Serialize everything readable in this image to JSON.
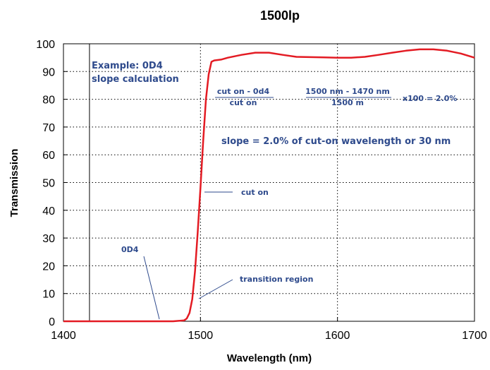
{
  "chart_data": {
    "type": "line",
    "title": "1500lp",
    "xlabel": "Wavelength (nm)",
    "ylabel": "Transmission",
    "xlim": [
      1400,
      1700
    ],
    "ylim": [
      0,
      100
    ],
    "x_ticks": [
      1400,
      1500,
      1600,
      1700
    ],
    "y_ticks": [
      0,
      10,
      20,
      30,
      40,
      50,
      60,
      70,
      80,
      90,
      100
    ],
    "grid": "dotted",
    "series": [
      {
        "color": "#e31b23",
        "points": [
          [
            1400,
            0
          ],
          [
            1420,
            0
          ],
          [
            1440,
            0
          ],
          [
            1460,
            0
          ],
          [
            1480,
            0
          ],
          [
            1488,
            0.3
          ],
          [
            1490,
            1
          ],
          [
            1492,
            3
          ],
          [
            1494,
            8
          ],
          [
            1496,
            18
          ],
          [
            1498,
            32
          ],
          [
            1500,
            48
          ],
          [
            1502,
            65
          ],
          [
            1504,
            80
          ],
          [
            1506,
            89
          ],
          [
            1508,
            93.5
          ],
          [
            1510,
            94
          ],
          [
            1515,
            94.3
          ],
          [
            1520,
            95
          ],
          [
            1530,
            96
          ],
          [
            1540,
            96.8
          ],
          [
            1550,
            96.8
          ],
          [
            1560,
            96
          ],
          [
            1570,
            95.3
          ],
          [
            1580,
            95.2
          ],
          [
            1590,
            95.1
          ],
          [
            1600,
            95
          ],
          [
            1610,
            95
          ],
          [
            1620,
            95.3
          ],
          [
            1630,
            96
          ],
          [
            1640,
            96.8
          ],
          [
            1650,
            97.5
          ],
          [
            1660,
            98
          ],
          [
            1670,
            98
          ],
          [
            1680,
            97.5
          ],
          [
            1690,
            96.5
          ],
          [
            1700,
            95
          ]
        ]
      }
    ],
    "reference_lines": [
      {
        "orientation": "vertical",
        "x": 1419,
        "style": "solid"
      }
    ],
    "annotations": {
      "example_line1": "Example: 0D4",
      "example_line2": "slope calculation",
      "frac1_num": "cut on - 0d4",
      "frac1_den": "cut on",
      "frac2_num": "1500 nm - 1470 nm",
      "frac2_den": "1500 m",
      "x100": "x100 = 2.0%",
      "slope": "slope = 2.0% of cut-on wavelength or 30 nm",
      "cut_on": "cut on",
      "od4": "0D4",
      "transition": "transition region"
    }
  }
}
